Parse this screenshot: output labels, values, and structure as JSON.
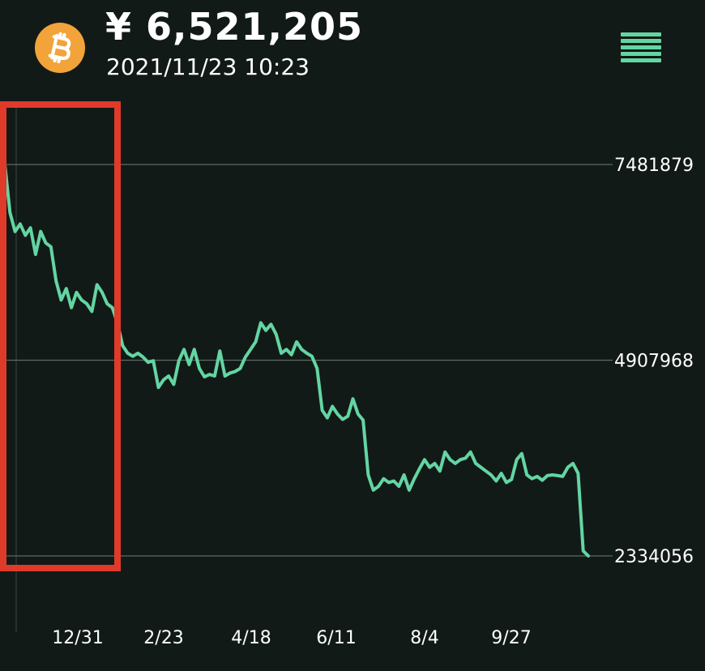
{
  "header": {
    "coin_icon": "bitcoin-icon",
    "price": "¥ 6,521,205",
    "timestamp": "2021/11/23 10:23",
    "menu_icon": "hamburger-menu-icon"
  },
  "colors": {
    "background": "#121a17",
    "line": "#63d5a3",
    "grid": "#5d6a65",
    "coin": "#f2a33a",
    "highlight_box": "#e03a2a"
  },
  "chart_data": {
    "type": "line",
    "y_gridlines": [
      7481879,
      4907968,
      2334056
    ],
    "y_labels": [
      "7481879",
      "4907968",
      "2334056"
    ],
    "x_labels": [
      "12/31",
      "2/23",
      "4/18",
      "6/11",
      "8/4",
      "9/27"
    ],
    "series": [
      {
        "values": [
          [
            0,
            7481879
          ],
          [
            2,
            6850000
          ],
          [
            4,
            6600000
          ],
          [
            6,
            6700000
          ],
          [
            8,
            6550000
          ],
          [
            10,
            6650000
          ],
          [
            12,
            6300000
          ],
          [
            14,
            6600000
          ],
          [
            16,
            6450000
          ],
          [
            18,
            6400000
          ],
          [
            20,
            5950000
          ],
          [
            22,
            5700000
          ],
          [
            24,
            5850000
          ],
          [
            26,
            5600000
          ],
          [
            28,
            5800000
          ],
          [
            30,
            5700000
          ],
          [
            32,
            5650000
          ],
          [
            34,
            5550000
          ],
          [
            36,
            5900000
          ],
          [
            38,
            5800000
          ],
          [
            40,
            5650000
          ],
          [
            42,
            5600000
          ],
          [
            44,
            5400000
          ],
          [
            46,
            5100000
          ],
          [
            48,
            5000000
          ],
          [
            50,
            4960000
          ],
          [
            52,
            5000000
          ],
          [
            54,
            4950000
          ],
          [
            56,
            4880000
          ],
          [
            58,
            4900000
          ],
          [
            60,
            4550000
          ],
          [
            62,
            4650000
          ],
          [
            64,
            4700000
          ],
          [
            66,
            4590000
          ],
          [
            68,
            4900000
          ],
          [
            70,
            5050000
          ],
          [
            72,
            4850000
          ],
          [
            74,
            5050000
          ],
          [
            76,
            4800000
          ],
          [
            78,
            4690000
          ],
          [
            80,
            4720000
          ],
          [
            82,
            4700000
          ],
          [
            84,
            5030000
          ],
          [
            86,
            4700000
          ],
          [
            88,
            4740000
          ],
          [
            90,
            4760000
          ],
          [
            92,
            4800000
          ],
          [
            94,
            4950000
          ],
          [
            96,
            5050000
          ],
          [
            98,
            5150000
          ],
          [
            100,
            5400000
          ],
          [
            102,
            5300000
          ],
          [
            104,
            5380000
          ],
          [
            106,
            5250000
          ],
          [
            108,
            5000000
          ],
          [
            110,
            5050000
          ],
          [
            112,
            4980000
          ],
          [
            114,
            5150000
          ],
          [
            116,
            5050000
          ],
          [
            118,
            5000000
          ],
          [
            120,
            4960000
          ],
          [
            122,
            4800000
          ],
          [
            124,
            4250000
          ],
          [
            126,
            4150000
          ],
          [
            128,
            4300000
          ],
          [
            130,
            4200000
          ],
          [
            132,
            4130000
          ],
          [
            134,
            4170000
          ],
          [
            136,
            4400000
          ],
          [
            138,
            4200000
          ],
          [
            140,
            4120000
          ],
          [
            142,
            3400000
          ],
          [
            144,
            3200000
          ],
          [
            146,
            3250000
          ],
          [
            148,
            3350000
          ],
          [
            150,
            3300000
          ],
          [
            152,
            3320000
          ],
          [
            154,
            3250000
          ],
          [
            156,
            3400000
          ],
          [
            158,
            3200000
          ],
          [
            160,
            3350000
          ],
          [
            162,
            3480000
          ],
          [
            164,
            3600000
          ],
          [
            166,
            3500000
          ],
          [
            168,
            3550000
          ],
          [
            170,
            3450000
          ],
          [
            172,
            3700000
          ],
          [
            174,
            3600000
          ],
          [
            176,
            3550000
          ],
          [
            178,
            3600000
          ],
          [
            180,
            3620000
          ],
          [
            182,
            3700000
          ],
          [
            184,
            3550000
          ],
          [
            186,
            3500000
          ],
          [
            188,
            3450000
          ],
          [
            190,
            3400000
          ],
          [
            192,
            3320000
          ],
          [
            194,
            3420000
          ],
          [
            196,
            3300000
          ],
          [
            198,
            3340000
          ],
          [
            200,
            3600000
          ],
          [
            202,
            3680000
          ],
          [
            204,
            3400000
          ],
          [
            206,
            3350000
          ],
          [
            208,
            3380000
          ],
          [
            210,
            3330000
          ],
          [
            212,
            3390000
          ],
          [
            214,
            3400000
          ],
          [
            216,
            3390000
          ],
          [
            218,
            3380000
          ],
          [
            220,
            3500000
          ],
          [
            222,
            3550000
          ],
          [
            224,
            3420000
          ],
          [
            226,
            2400000
          ],
          [
            228,
            2334056
          ]
        ]
      }
    ]
  }
}
